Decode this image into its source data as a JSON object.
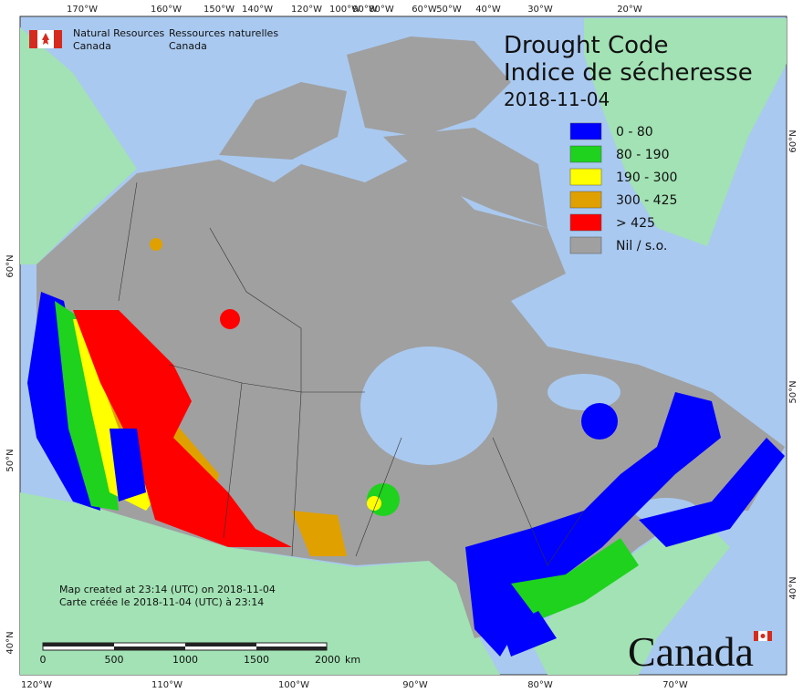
{
  "header": {
    "org_en": [
      "Natural Resources",
      "Canada"
    ],
    "org_fr": [
      "Ressources naturelles",
      "Canada"
    ]
  },
  "title": [
    "Drought Code",
    "Indice de sécheresse"
  ],
  "date": "2018-11-04",
  "legend": [
    {
      "label": "0 - 80",
      "color": "#0000ff"
    },
    {
      "label": "80 - 190",
      "color": "#1ed21e"
    },
    {
      "label": "190 - 300",
      "color": "#ffff00"
    },
    {
      "label": "300 - 425",
      "color": "#e0a000"
    },
    {
      "label": "> 425",
      "color": "#ff0000"
    },
    {
      "label": "Nil / s.o.",
      "color": "#a0a0a0"
    }
  ],
  "top_lon_labels": [
    "170°W",
    "160°W",
    "150°W",
    "140°W",
    "120°W",
    "100°W",
    "90°W",
    "80°W",
    "60°W",
    "50°W",
    "40°W",
    "30°W",
    "20°W"
  ],
  "bottom_lon_labels": [
    "120°W",
    "110°W",
    "100°W",
    "90°W",
    "80°W",
    "70°W"
  ],
  "left_lat_labels": [
    "60°N",
    "50°N",
    "40°N"
  ],
  "right_lat_labels": [
    "60°N",
    "50°N",
    "40°N"
  ],
  "scale": {
    "labels": [
      "0",
      "500",
      "1000",
      "1500",
      "2000"
    ],
    "unit": "km"
  },
  "credits": [
    "Map created at 23:14 (UTC) on 2018-11-04",
    "Carte créée le 2018-11-04 (UTC) à 23:14"
  ],
  "wordmark": "Canada"
}
